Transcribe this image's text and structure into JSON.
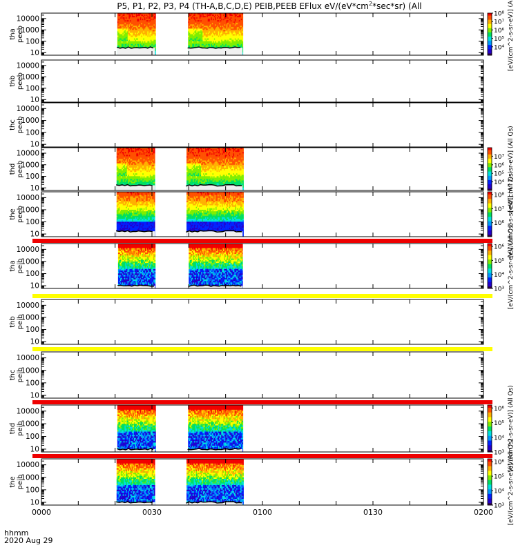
{
  "header": {
    "title_prefix": "P5, P1, P2, P3, P4 (TH-A,B,C,D,E) PEIB,PEEB EFlux eV/(eV*cm",
    "title_sup": "2",
    "title_suffix": "*sec*sr)",
    "title_tail": "(All"
  },
  "footer": {
    "time_label": "hhmm",
    "date_label": "2020 Aug 29"
  },
  "colors": {
    "background": "#ffffff",
    "frame": "#000000",
    "red_bar": "#ee0000",
    "yellow_bar": "#ffff00"
  },
  "chart_data": {
    "type": "heatmap",
    "title": "P5, P1, P2, P3, P4 (TH-A,B,C,D,E) PEIB,PEEB EFlux eV/(eV*cm^2*sec*sr)",
    "x_axis": {
      "label": "hhmm",
      "date": "2020 Aug 29",
      "range_minutes": [
        0,
        120
      ],
      "ticks": [
        {
          "minute": 0,
          "label": "0000"
        },
        {
          "minute": 30,
          "label": "0030"
        },
        {
          "minute": 60,
          "label": "0100"
        },
        {
          "minute": 90,
          "label": "0130"
        },
        {
          "minute": 120,
          "label": "0200"
        }
      ]
    },
    "y_axis": {
      "scale": "log",
      "unit": "eV",
      "range": [
        6,
        30000
      ],
      "ticks": [
        {
          "value": 10,
          "label": "10"
        },
        {
          "value": 100,
          "label": "100"
        },
        {
          "value": 1000,
          "label": "1000"
        },
        {
          "value": 10000,
          "label": "10000"
        }
      ]
    },
    "colormap": [
      "#30004c",
      "#2200cc",
      "#0022ff",
      "#0099ff",
      "#00e0e0",
      "#00e060",
      "#80ee00",
      "#ffff00",
      "#ffb000",
      "#ff5000",
      "#f20000"
    ],
    "panels": [
      {
        "probe": "tha",
        "species": "peeb",
        "ylabel": [
          "tha",
          "peeb"
        ],
        "data_intervals": [
          [
            20.6,
            30.8
          ],
          [
            39.8,
            54.6
          ]
        ],
        "spectral": "electron",
        "low_edge": 0.18,
        "band": null,
        "colorbar": {
          "min_exp": 3,
          "max_exp": 8,
          "ticks": [
            {
              "exp": 8,
              "label": "10⁸"
            },
            {
              "exp": 7,
              "label": "10⁷"
            },
            {
              "exp": 6,
              "label": "10⁶"
            },
            {
              "exp": 5,
              "label": "10⁵"
            },
            {
              "exp": 4,
              "label": "10⁴"
            }
          ],
          "label": "[eV/(cm^2-s-sr-eV)] (All"
        }
      },
      {
        "probe": "thb",
        "species": "peeb",
        "ylabel": [
          "thb",
          "peeb"
        ],
        "data_intervals": [],
        "spectral": "none",
        "low_edge": 0,
        "band": null,
        "colorbar": null
      },
      {
        "probe": "thc",
        "species": "peeb",
        "ylabel": [
          "thc",
          "peeb"
        ],
        "data_intervals": [],
        "spectral": "none",
        "low_edge": 0,
        "band": null,
        "colorbar": null
      },
      {
        "probe": "thd",
        "species": "peeb",
        "ylabel": [
          "thd",
          "peeb"
        ],
        "data_intervals": [
          [
            20.4,
            30.8
          ],
          [
            39.4,
            54.6
          ]
        ],
        "spectral": "electron",
        "low_edge": 0.12,
        "band": null,
        "colorbar": {
          "min_exp": 3,
          "max_exp": 8,
          "ticks": [
            {
              "exp": 7,
              "label": "10⁷"
            },
            {
              "exp": 6,
              "label": "10⁶"
            },
            {
              "exp": 5,
              "label": "10⁵"
            },
            {
              "exp": 4,
              "label": "10⁴"
            }
          ],
          "label": "[eV/(cm^2-s-sr-eV)] (All Qs)"
        }
      },
      {
        "probe": "the",
        "species": "peeb",
        "ylabel": [
          "the",
          "peeb"
        ],
        "data_intervals": [
          [
            20.4,
            30.8
          ],
          [
            39.4,
            54.6
          ]
        ],
        "spectral": "electron_the",
        "low_edge": 0.12,
        "band": "red",
        "colorbar": {
          "min_exp": 5,
          "max_exp": 8.2,
          "ticks": [
            {
              "exp": 8,
              "label": "10⁸"
            },
            {
              "exp": 7,
              "label": "10⁷"
            },
            {
              "exp": 6,
              "label": "10⁶"
            }
          ],
          "label": "[eV/(cm^2-s-sr-eV)] (All Qs)"
        }
      },
      {
        "probe": "tha",
        "species": "peib",
        "ylabel": [
          "tha",
          "peib"
        ],
        "data_intervals": [
          [
            20.8,
            30.8
          ],
          [
            40.0,
            54.6
          ]
        ],
        "spectral": "ion",
        "low_edge": 0.06,
        "band": "yellow",
        "colorbar": {
          "min_exp": 3,
          "max_exp": 6.2,
          "ticks": [
            {
              "exp": 6,
              "label": "10⁶"
            },
            {
              "exp": 5,
              "label": "10⁵"
            },
            {
              "exp": 4,
              "label": "10⁴"
            },
            {
              "exp": 3,
              "label": "10³"
            }
          ],
          "label": "[eV/(cm^2-s-sr-eV)] (All Qs)"
        }
      },
      {
        "probe": "thb",
        "species": "peib",
        "ylabel": [
          "thb",
          "peib"
        ],
        "data_intervals": [],
        "spectral": "none",
        "low_edge": 0,
        "band": "yellow",
        "colorbar": null
      },
      {
        "probe": "thc",
        "species": "peib",
        "ylabel": [
          "thc",
          "peib"
        ],
        "data_intervals": [],
        "spectral": "none",
        "low_edge": 0,
        "band": "red",
        "colorbar": null
      },
      {
        "probe": "thd",
        "species": "peib",
        "ylabel": [
          "thd",
          "peib"
        ],
        "data_intervals": [
          [
            20.6,
            30.8
          ],
          [
            39.8,
            54.6
          ]
        ],
        "spectral": "ion",
        "low_edge": 0.06,
        "band": "red",
        "colorbar": {
          "min_exp": 3,
          "max_exp": 6.2,
          "ticks": [
            {
              "exp": 6,
              "label": "10⁶"
            },
            {
              "exp": 5,
              "label": "10⁵"
            },
            {
              "exp": 4,
              "label": "10⁴"
            },
            {
              "exp": 3,
              "label": "10³"
            }
          ],
          "label": "[eV/(cm^2-s-sr-eV)] (All Qs)"
        }
      },
      {
        "probe": "the",
        "species": "peib",
        "ylabel": [
          "the",
          "peib"
        ],
        "data_intervals": [
          [
            20.4,
            30.8
          ],
          [
            39.4,
            54.6
          ]
        ],
        "spectral": "ion",
        "low_edge": 0.06,
        "band": null,
        "colorbar": {
          "min_exp": 3,
          "max_exp": 6.2,
          "ticks": [
            {
              "exp": 6,
              "label": "10⁶"
            },
            {
              "exp": 5,
              "label": "10⁵"
            },
            {
              "exp": 4,
              "label": "10⁴"
            },
            {
              "exp": 3,
              "label": "10³"
            }
          ],
          "label": "[eV/(cm^2-s-sr-eV)] (All Qs)"
        }
      }
    ]
  }
}
